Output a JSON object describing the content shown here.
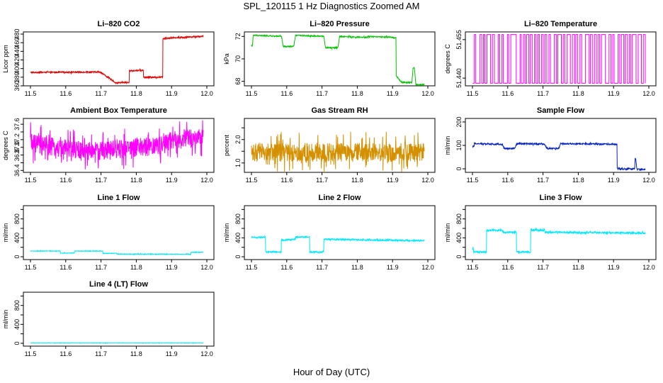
{
  "main_title": "SPL_120115  1 Hz Diagnostics Zoomed AM",
  "x_axis_title": "Hour of Day (UTC)",
  "chart_data": [
    {
      "type": "line",
      "title": "Li–820 CO2",
      "ylabel": "Licor ppm",
      "color": "#e00000",
      "xlim": [
        11.5,
        12.0
      ],
      "xticks": [
        "11.5",
        "11.6",
        "11.7",
        "11.8",
        "11.9",
        "12.0"
      ],
      "ylim": [
        360,
        485
      ],
      "yticks": [
        360,
        380,
        400,
        420,
        440,
        460,
        480
      ],
      "noise": 1.5,
      "series": [
        {
          "x": [
            11.5,
            11.7,
            11.7,
            11.74,
            11.74,
            11.78,
            11.78,
            11.82,
            11.82,
            11.875,
            11.875,
            11.99
          ],
          "y": [
            391,
            392,
            391,
            368,
            367,
            368,
            395,
            396,
            380,
            380,
            470,
            475
          ]
        }
      ]
    },
    {
      "type": "line",
      "title": "Li–820 Pressure",
      "ylabel": "kPa",
      "color": "#00c000",
      "xlim": [
        11.5,
        12.0
      ],
      "xticks": [
        "11.5",
        "11.6",
        "11.7",
        "11.8",
        "11.9",
        "12.0"
      ],
      "ylim": [
        67.6,
        72.4
      ],
      "yticks": [
        68,
        70,
        72
      ],
      "noise": 0.05,
      "series": [
        {
          "x": [
            11.5,
            11.503,
            11.505,
            11.585,
            11.59,
            11.62,
            11.625,
            11.705,
            11.71,
            11.745,
            11.75,
            11.825,
            11.83,
            11.91,
            11.91,
            11.925,
            11.93,
            11.955,
            11.958,
            11.962,
            11.966,
            11.99
          ],
          "y": [
            71.2,
            71.2,
            72.1,
            72.0,
            71.1,
            71.1,
            72.1,
            72.0,
            71.0,
            71.0,
            72.0,
            71.9,
            72.0,
            71.9,
            68.5,
            67.9,
            67.9,
            67.9,
            69.2,
            69.2,
            67.7,
            67.7
          ]
        }
      ]
    },
    {
      "type": "line",
      "title": "Li–820 Temperature",
      "ylabel": "degrees C",
      "color": "#ff00ff",
      "xlim": [
        11.5,
        12.0
      ],
      "xticks": [
        "11.5",
        "11.6",
        "11.7",
        "11.8",
        "11.9",
        "12.0"
      ],
      "ylim": [
        51.437,
        51.458
      ],
      "yticks": [
        51.44,
        51.455
      ],
      "ytick_labels": [
        "51.440",
        "51.455"
      ],
      "toggle": {
        "low": 51.438,
        "high": 51.457,
        "from": 11.5,
        "to": 11.99,
        "count": 95
      }
    },
    {
      "type": "line",
      "title": "Ambient Box Temperature",
      "ylabel": "degrees C",
      "color": "#ff00ff",
      "xlim": [
        11.5,
        12.0
      ],
      "xticks": [
        "11.5",
        "11.6",
        "11.7",
        "11.8",
        "11.9",
        "12.0"
      ],
      "ylim": [
        36.35,
        37.75
      ],
      "yticks": [
        36.4,
        36.6,
        36.8,
        37.0,
        37.2,
        37.4,
        37.6
      ],
      "ytick_labels": [
        "36.4",
        "",
        "36.8",
        "37.0",
        "37.2",
        "",
        "37.6"
      ],
      "noise": 0.25,
      "series": [
        {
          "x": [
            11.5,
            11.6,
            11.7,
            11.8,
            11.88,
            11.9,
            11.99
          ],
          "y": [
            37.1,
            36.95,
            36.9,
            37.0,
            37.05,
            37.2,
            37.25
          ]
        }
      ]
    },
    {
      "type": "line",
      "title": "Gas Stream RH",
      "ylabel": "percent",
      "color": "#d49000",
      "xlim": [
        11.5,
        12.0
      ],
      "xticks": [
        "11.5",
        "11.6",
        "11.7",
        "11.8",
        "11.9",
        "12.0"
      ],
      "ylim": [
        0.6,
        2.9
      ],
      "yticks": [
        1.0,
        1.5,
        2.0,
        2.5
      ],
      "ytick_labels": [
        "1.0",
        "",
        "2.0",
        ""
      ],
      "noise": 0.4,
      "series": [
        {
          "x": [
            11.5,
            11.99
          ],
          "y": [
            1.45,
            1.45
          ]
        }
      ]
    },
    {
      "type": "line",
      "title": "Sample Flow",
      "ylabel": "ml/min",
      "color": "#0020c0",
      "xlim": [
        11.5,
        12.0
      ],
      "xticks": [
        "11.5",
        "11.6",
        "11.7",
        "11.8",
        "11.9",
        "12.0"
      ],
      "ylim": [
        -15,
        215
      ],
      "yticks": [
        0,
        100,
        200
      ],
      "noise": 3,
      "series": [
        {
          "x": [
            11.5,
            11.505,
            11.505,
            11.585,
            11.59,
            11.62,
            11.625,
            11.705,
            11.71,
            11.745,
            11.75,
            11.91,
            11.91,
            11.96,
            11.961,
            11.963,
            11.966,
            11.99
          ],
          "y": [
            95,
            95,
            108,
            104,
            87,
            87,
            108,
            106,
            87,
            87,
            107,
            105,
            0,
            0,
            45,
            45,
            -2,
            -2
          ]
        }
      ]
    },
    {
      "type": "line",
      "title": "Line 1 Flow",
      "ylabel": "ml/min",
      "color": "#00e8ff",
      "xlim": [
        11.5,
        12.0
      ],
      "xticks": [
        "11.5",
        "11.6",
        "11.7",
        "11.8",
        "11.9",
        "12.0"
      ],
      "ylim": [
        -60,
        1080
      ],
      "yticks": [
        0,
        200,
        400,
        600,
        800,
        1000
      ],
      "ytick_labels": [
        "0",
        "",
        "400",
        "",
        "800",
        ""
      ],
      "noise": 6,
      "series": [
        {
          "x": [
            11.5,
            11.585,
            11.585,
            11.625,
            11.625,
            11.705,
            11.705,
            11.745,
            11.745,
            11.955,
            11.955,
            11.99
          ],
          "y": [
            120,
            120,
            75,
            80,
            120,
            120,
            70,
            75,
            55,
            55,
            95,
            95
          ]
        }
      ]
    },
    {
      "type": "line",
      "title": "Line 2 Flow",
      "ylabel": "ml/min",
      "color": "#00e8ff",
      "xlim": [
        11.5,
        12.0
      ],
      "xticks": [
        "11.5",
        "11.6",
        "11.7",
        "11.8",
        "11.9",
        "12.0"
      ],
      "ylim": [
        -60,
        1080
      ],
      "yticks": [
        0,
        200,
        400,
        600,
        800,
        1000
      ],
      "ytick_labels": [
        "0",
        "",
        "400",
        "",
        "800",
        ""
      ],
      "noise": 15,
      "series": [
        {
          "x": [
            11.5,
            11.54,
            11.54,
            11.585,
            11.585,
            11.625,
            11.625,
            11.665,
            11.665,
            11.705,
            11.705,
            11.99
          ],
          "y": [
            410,
            410,
            100,
            100,
            350,
            370,
            420,
            420,
            100,
            100,
            370,
            340
          ]
        }
      ]
    },
    {
      "type": "line",
      "title": "Line 3 Flow",
      "ylabel": "ml/min",
      "color": "#00e8ff",
      "xlim": [
        11.5,
        12.0
      ],
      "xticks": [
        "11.5",
        "11.6",
        "11.7",
        "11.8",
        "11.9",
        "12.0"
      ],
      "ylim": [
        -60,
        1080
      ],
      "yticks": [
        0,
        200,
        400,
        600,
        800,
        1000
      ],
      "ytick_labels": [
        "0",
        "",
        "400",
        "",
        "800",
        ""
      ],
      "noise": 18,
      "series": [
        {
          "x": [
            11.5,
            11.503,
            11.503,
            11.54,
            11.54,
            11.585,
            11.585,
            11.625,
            11.625,
            11.665,
            11.665,
            11.705,
            11.705,
            11.99
          ],
          "y": [
            180,
            180,
            100,
            100,
            560,
            560,
            520,
            520,
            100,
            100,
            560,
            560,
            520,
            500
          ]
        }
      ]
    },
    {
      "type": "line",
      "title": "Line 4 (LT) Flow",
      "ylabel": "ml/min",
      "color": "#00e8ff",
      "xlim": [
        11.5,
        12.0
      ],
      "xticks": [
        "11.5",
        "11.6",
        "11.7",
        "11.8",
        "11.9",
        "12.0"
      ],
      "ylim": [
        -60,
        1080
      ],
      "yticks": [
        0,
        200,
        400,
        600,
        800,
        1000
      ],
      "ytick_labels": [
        "0",
        "",
        "400",
        "",
        "800",
        ""
      ],
      "noise": 3,
      "series": [
        {
          "x": [
            11.5,
            11.99
          ],
          "y": [
            5,
            5
          ]
        }
      ]
    }
  ]
}
